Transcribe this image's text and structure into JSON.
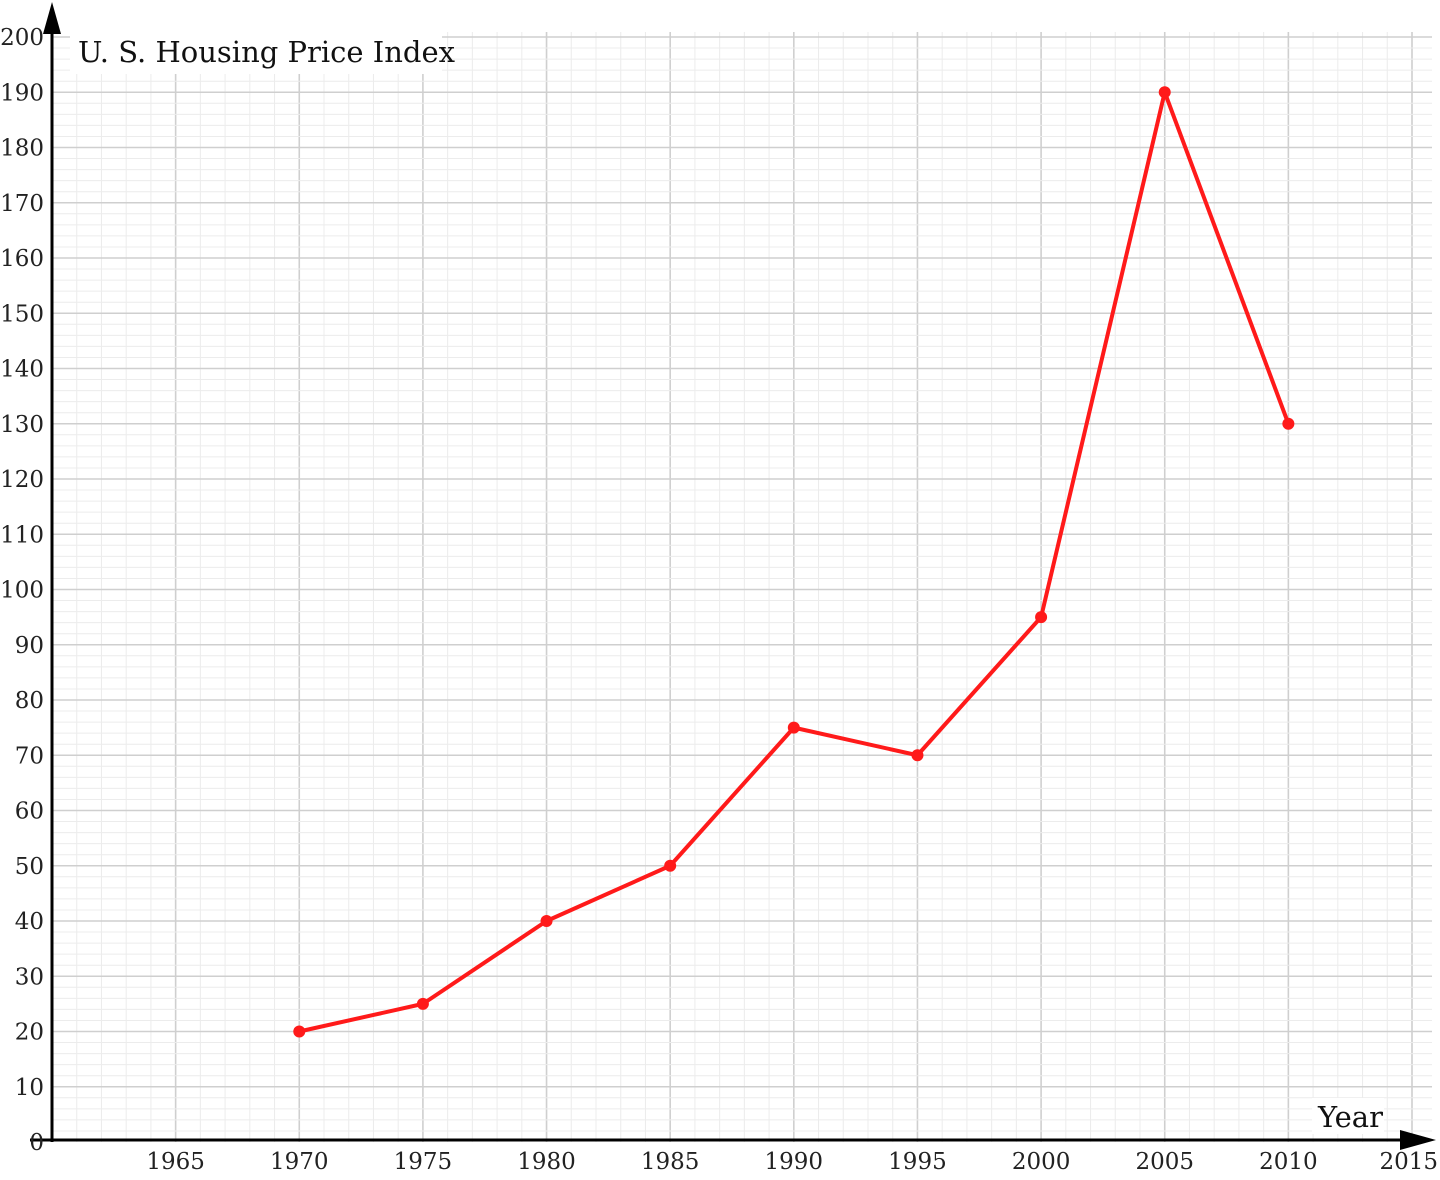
{
  "chart_data": {
    "type": "line",
    "title": "U. S. Housing Price Index",
    "xlabel": "Year",
    "ylabel": "",
    "xlim": [
      1960,
      2015
    ],
    "ylim": [
      0,
      200
    ],
    "x_ticks": [
      1965,
      1970,
      1975,
      1980,
      1985,
      1990,
      1995,
      2000,
      2005,
      2010,
      2015
    ],
    "y_ticks": [
      0,
      10,
      20,
      30,
      40,
      50,
      60,
      70,
      80,
      90,
      100,
      110,
      120,
      130,
      140,
      150,
      160,
      170,
      180,
      190,
      200
    ],
    "grid": true,
    "series": [
      {
        "x": [
          1970,
          1975,
          1980,
          1985,
          1990,
          1995,
          2000,
          2005,
          2010
        ],
        "values": [
          20,
          25,
          40,
          50,
          75,
          70,
          95,
          190,
          130
        ],
        "color": "#ff1a1a"
      }
    ]
  }
}
